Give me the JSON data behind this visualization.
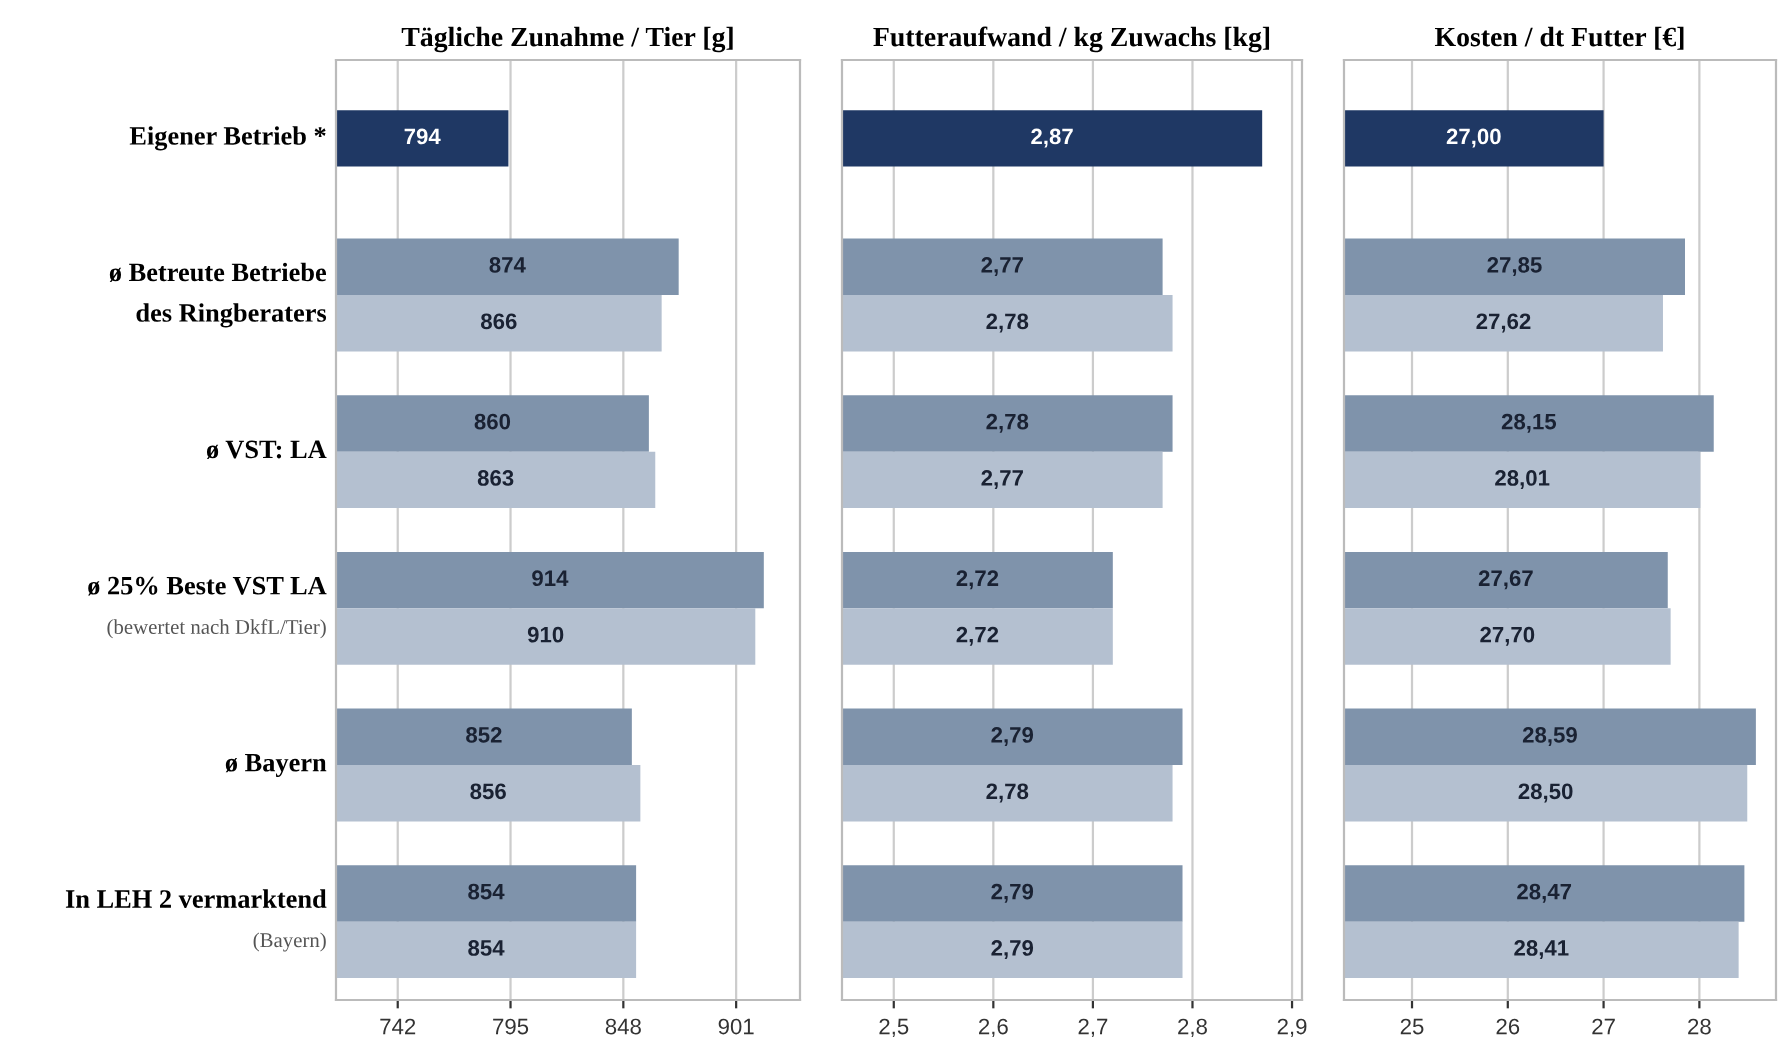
{
  "chart_data": [
    {
      "type": "bar",
      "orientation": "horizontal",
      "title": "Tägliche Zunahme / Tier [g]",
      "categories": [
        "Eigener Betrieb *",
        "ø Betreute Betriebe\ndes Ringberaters",
        "ø VST: LA",
        "ø 25% Beste VST LA\n(bewertet nach DkfL/Tier)",
        "ø Bayern",
        "In LEH 2 vermarktend\n(Bayern)"
      ],
      "xlim": [
        713,
        931
      ],
      "xticks": [
        742,
        795,
        848,
        901
      ],
      "grid": "x",
      "tick_labels": true,
      "series": [
        {
          "color": "#1f3864",
          "values": [
            794,
            null,
            null,
            null,
            null,
            null
          ],
          "value_labels": [
            "794",
            null,
            null,
            null,
            null,
            null
          ]
        },
        {
          "color": "#7f93ab",
          "values": [
            null,
            874,
            860,
            914,
            852,
            854
          ],
          "value_labels": [
            null,
            "874",
            "860",
            "914",
            "852",
            "854"
          ]
        },
        {
          "color": "#b4c0d0",
          "values": [
            null,
            866,
            863,
            910,
            856,
            854
          ],
          "value_labels": [
            null,
            "866",
            "863",
            "910",
            "856",
            "854"
          ]
        }
      ]
    },
    {
      "type": "bar",
      "orientation": "horizontal",
      "title": "Futteraufwand / kg Zuwachs [kg]",
      "xlim": [
        2.448,
        2.91
      ],
      "xticks": [
        {
          "value": 2.5,
          "label": "2,5"
        },
        {
          "value": 2.6,
          "label": "2,6"
        },
        {
          "value": 2.7,
          "label": "2,7"
        },
        {
          "value": 2.8,
          "label": "2,8"
        },
        {
          "value": 2.9,
          "label": "2,9"
        }
      ],
      "grid": "x",
      "tick_labels": "x",
      "series": [
        {
          "color": "#1f3864",
          "values": [
            2.87,
            null,
            null,
            null,
            null,
            null
          ],
          "value_labels": [
            "2,87",
            null,
            null,
            null,
            null,
            null
          ]
        },
        {
          "color": "#7f93ab",
          "values": [
            null,
            2.77,
            2.78,
            2.72,
            2.79,
            2.79
          ],
          "value_labels": [
            null,
            "2,77",
            "2,78",
            "2,72",
            "2,79",
            "2,79"
          ]
        },
        {
          "color": "#b4c0d0",
          "values": [
            null,
            2.78,
            2.77,
            2.72,
            2.78,
            2.79
          ],
          "value_labels": [
            null,
            "2,78",
            "2,77",
            "2,72",
            "2,78",
            "2,79"
          ]
        }
      ]
    },
    {
      "type": "bar",
      "orientation": "horizontal",
      "title": "Kosten / dt Futter [€]",
      "xlim": [
        24.29,
        28.8
      ],
      "xticks": [
        25,
        26,
        27,
        28
      ],
      "grid": "x",
      "tick_labels": "x",
      "series": [
        {
          "color": "#1f3864",
          "values": [
            27.0,
            null,
            null,
            null,
            null,
            null
          ],
          "value_labels": [
            "27,00",
            null,
            null,
            null,
            null,
            null
          ]
        },
        {
          "color": "#7f93ab",
          "values": [
            null,
            27.85,
            28.15,
            27.67,
            28.59,
            28.47
          ],
          "value_labels": [
            null,
            "27,85",
            "28,15",
            "27,67",
            "28,59",
            "28,47"
          ]
        },
        {
          "color": "#b4c0d0",
          "values": [
            null,
            27.62,
            28.01,
            27.7,
            28.5,
            28.41
          ],
          "value_labels": [
            null,
            "27,62",
            "28,01",
            "27,70",
            "28,50",
            "28,41"
          ]
        }
      ]
    }
  ]
}
